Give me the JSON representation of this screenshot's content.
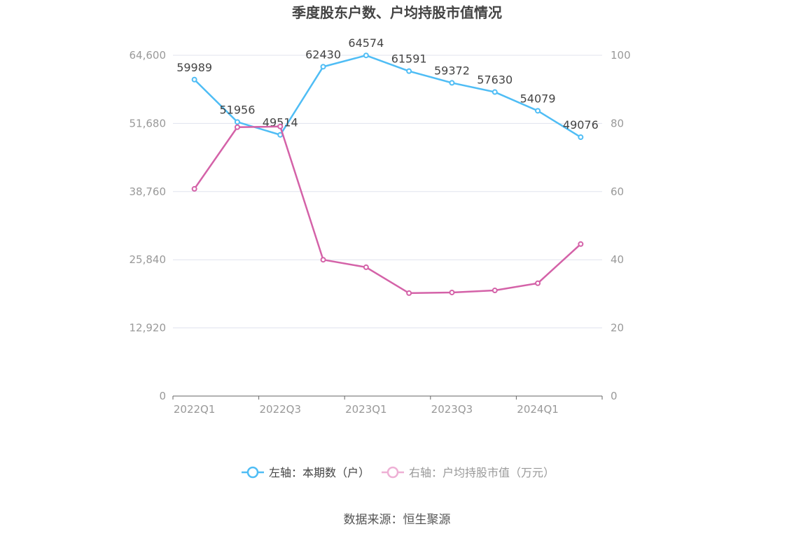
{
  "chart_data": {
    "type": "line",
    "title": "季度股东户数、户均持股市值情况",
    "categories": [
      "2022Q1",
      "2022Q2",
      "2022Q3",
      "2022Q4",
      "2023Q1",
      "2023Q2",
      "2023Q3",
      "2023Q4",
      "2024Q1",
      "2024Q2"
    ],
    "x_tick_labels": [
      "2022Q1",
      "2022Q3",
      "2023Q1",
      "2023Q3",
      "2024Q1"
    ],
    "left_axis": {
      "ticks": [
        "0",
        "12,920",
        "25,840",
        "38,760",
        "51,680",
        "64,600"
      ],
      "ylim": [
        0,
        64600
      ]
    },
    "right_axis": {
      "ticks": [
        "0",
        "20",
        "40",
        "60",
        "80",
        "100"
      ],
      "ylim": [
        0,
        100
      ]
    },
    "grid": true,
    "legend_position": "bottom",
    "series": [
      {
        "name": "左轴：本期数（户）",
        "axis": "left",
        "color": "#4fbdf5",
        "values": [
          59989,
          51956,
          49514,
          62430,
          64574,
          61591,
          59372,
          57630,
          54079,
          49076
        ],
        "labels": [
          "59989",
          "51956",
          "49514",
          "62430",
          "64574",
          "61591",
          "59372",
          "57630",
          "54079",
          "49076"
        ]
      },
      {
        "name": "右轴：户均持股市值（万元）",
        "axis": "right",
        "color": "#d462a8",
        "legend_color": "#eeb0d5",
        "values": [
          60.8,
          78.9,
          79.1,
          40.0,
          37.8,
          30.2,
          30.4,
          31.0,
          33.1,
          44.6
        ]
      }
    ]
  },
  "source": "数据来源：恒生聚源"
}
